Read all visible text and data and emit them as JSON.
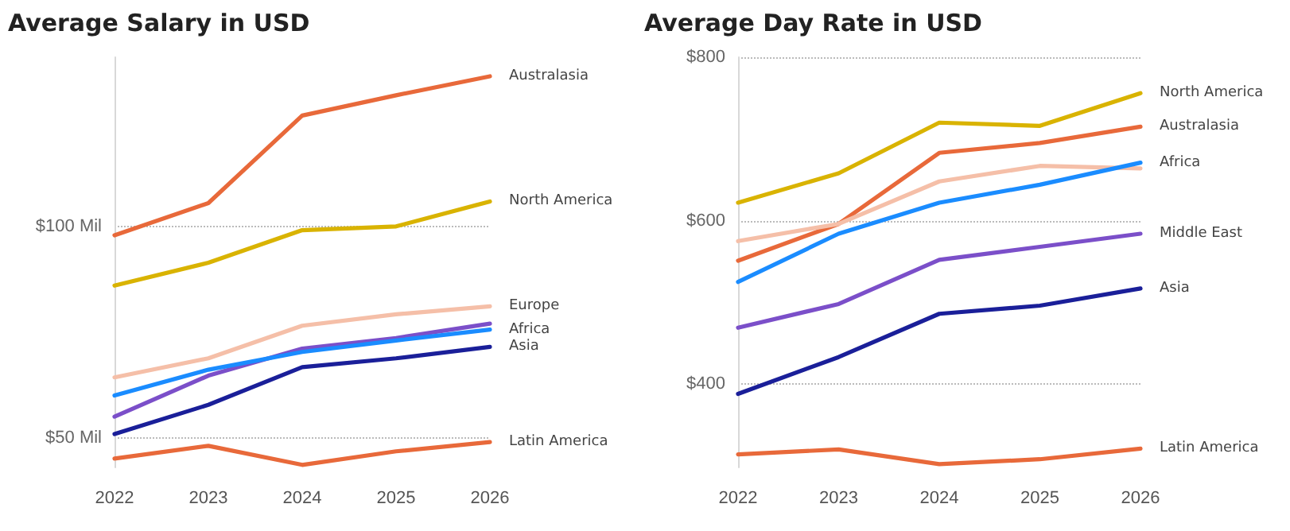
{
  "chart_data": [
    {
      "type": "line",
      "title": "Average Salary in USD",
      "categories": [
        "2022",
        "2023",
        "2024",
        "2025",
        "2026"
      ],
      "ylim": [
        43,
        140
      ],
      "yticks": [
        {
          "value": 50,
          "label": "$50 Mil"
        },
        {
          "value": 100,
          "label": "$100 Mil"
        }
      ],
      "grid": "y",
      "legend": false,
      "marker": "none",
      "series": [
        {
          "name": "Australasia",
          "color": "#e8693a",
          "values": [
            97.9,
            105.5,
            126.2,
            131,
            135.5
          ]
        },
        {
          "name": "North America",
          "color": "#d9b300",
          "values": [
            86.0,
            91.4,
            99.1,
            100,
            105.9
          ]
        },
        {
          "name": "Europe",
          "color": "#f5bfa8",
          "values": [
            64.3,
            68.8,
            76.5,
            79.2,
            81.1
          ]
        },
        {
          "color": "#7b4fc9",
          "values": [
            55.0,
            64.7,
            71.1,
            73.6,
            77.0
          ]
        },
        {
          "name": "Africa",
          "color": "#1a8cff",
          "values": [
            60.0,
            66.1,
            70.3,
            73.0,
            75.6
          ]
        },
        {
          "name": "Asia",
          "color": "#1a1f99",
          "values": [
            50.9,
            57.8,
            66.7,
            68.8,
            71.5
          ]
        },
        {
          "name": "Latin America",
          "color": "#e8693a",
          "values": [
            45.1,
            48.1,
            43.6,
            46.8,
            49.0
          ]
        }
      ]
    },
    {
      "type": "line",
      "title": "Average Day Rate in USD",
      "categories": [
        "2022",
        "2023",
        "2024",
        "2025",
        "2026"
      ],
      "ylim": [
        298,
        800
      ],
      "yticks": [
        {
          "value": 400,
          "label": "$400"
        },
        {
          "value": 600,
          "label": "$600"
        },
        {
          "value": 800,
          "label": "$800"
        }
      ],
      "grid": "y",
      "legend": false,
      "marker": "none",
      "series": [
        {
          "name": "North America",
          "color": "#d9b300",
          "values": [
            622,
            658,
            720,
            716,
            756
          ]
        },
        {
          "name": "Australasia",
          "color": "#e8693a",
          "values": [
            551,
            596,
            683,
            695,
            715
          ]
        },
        {
          "color": "#f5bfa8",
          "values": [
            575,
            596,
            648,
            667,
            664
          ]
        },
        {
          "name": "Africa",
          "color": "#1a8cff",
          "values": [
            525,
            584,
            622,
            644,
            671
          ]
        },
        {
          "name": "Middle East",
          "color": "#7b4fc9",
          "values": [
            469,
            498,
            552,
            568,
            584
          ]
        },
        {
          "name": "Asia",
          "color": "#1a1f99",
          "values": [
            388,
            433,
            486,
            496,
            517
          ]
        },
        {
          "name": "Latin America",
          "color": "#e8693a",
          "values": [
            314,
            320,
            302,
            308,
            321
          ]
        }
      ]
    }
  ]
}
